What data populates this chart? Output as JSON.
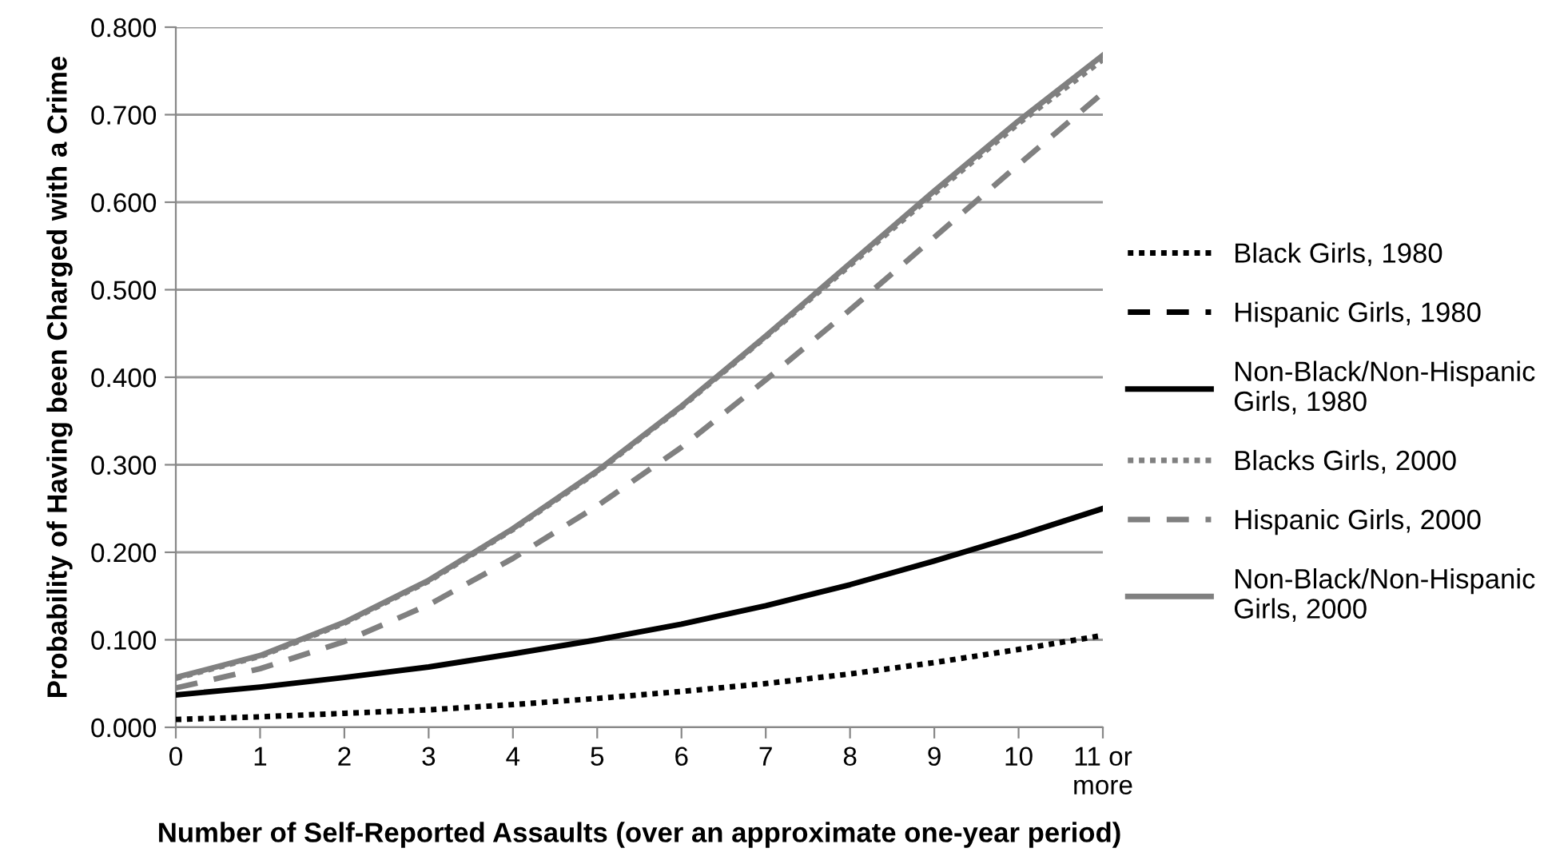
{
  "chart_data": {
    "type": "line",
    "xlabel": "Number of Self-Reported Assaults (over an approximate one-year period)",
    "ylabel": "Probability of Having been Charged with a Crime",
    "categories": [
      "0",
      "1",
      "2",
      "3",
      "4",
      "5",
      "6",
      "7",
      "8",
      "9",
      "10",
      "11 or\nmore"
    ],
    "ylim": [
      0,
      0.8
    ],
    "yticks": [
      {
        "value": 0,
        "label": "0.000"
      },
      {
        "value": 0.1,
        "label": "0.100"
      },
      {
        "value": 0.2,
        "label": "0.200"
      },
      {
        "value": 0.3,
        "label": "0.300"
      },
      {
        "value": 0.4,
        "label": "0.400"
      },
      {
        "value": 0.5,
        "label": "0.500"
      },
      {
        "value": 0.6,
        "label": "0.600"
      },
      {
        "value": 0.7,
        "label": "0.700"
      },
      {
        "value": 0.8,
        "label": "0.800"
      }
    ],
    "grid": "y",
    "legend": "right",
    "series": [
      {
        "name": "Black Girls, 1980",
        "color": "#000000",
        "line_style": "dotted",
        "values": [
          0.009,
          0.012,
          0.016,
          0.02,
          0.026,
          0.033,
          0.041,
          0.05,
          0.061,
          0.074,
          0.089,
          0.105
        ]
      },
      {
        "name": "Hispanic Girls, 1980",
        "color": "#000000",
        "line_style": "dashed",
        "values": [
          null,
          null,
          null,
          null,
          null,
          null,
          null,
          null,
          null,
          null,
          null,
          null
        ]
      },
      {
        "name": "Non-Black/Non-Hispanic\nGirls, 1980",
        "color": "#000000",
        "line_style": "solid",
        "values": [
          0.037,
          0.046,
          0.057,
          0.069,
          0.084,
          0.1,
          0.118,
          0.139,
          0.163,
          0.19,
          0.219,
          0.25
        ]
      },
      {
        "name": "Blacks Girls, 2000",
        "color": "#808080",
        "line_style": "dotted",
        "values": [
          0.056,
          0.081,
          0.119,
          0.167,
          0.226,
          0.292,
          0.366,
          0.446,
          0.528,
          0.61,
          0.69,
          0.763
        ]
      },
      {
        "name": "Hispanic Girls, 2000",
        "color": "#808080",
        "line_style": "dashed",
        "values": [
          0.045,
          0.067,
          0.098,
          0.14,
          0.193,
          0.253,
          0.32,
          0.397,
          0.477,
          0.56,
          0.643,
          0.725
        ]
      },
      {
        "name": "Non-Black/Non-Hispanic\nGirls, 2000",
        "color": "#808080",
        "line_style": "solid",
        "values": [
          0.057,
          0.082,
          0.12,
          0.168,
          0.227,
          0.293,
          0.367,
          0.447,
          0.53,
          0.613,
          0.693,
          0.768
        ]
      }
    ]
  }
}
